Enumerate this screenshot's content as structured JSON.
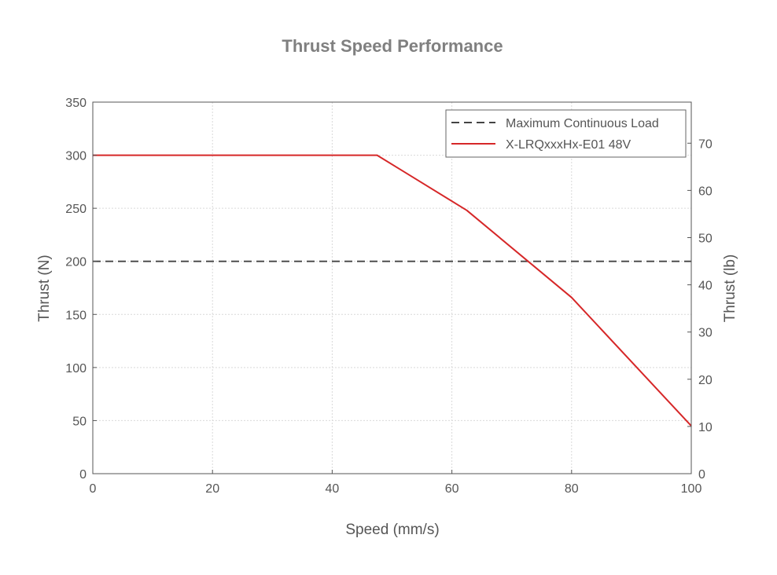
{
  "colors": {
    "background": "#ffffff",
    "axis": "#555555",
    "grid": "#d9d9d9",
    "title": "#808080",
    "thrust_line": "#d62728",
    "max_load_line": "#444444"
  },
  "chart_data": {
    "type": "line",
    "title": "Thrust Speed Performance",
    "xlabel": "Speed (mm/s)",
    "ylabel": "Thrust (N)",
    "y2label": "Thrust (lb)",
    "xlim": [
      0,
      100
    ],
    "ylim": [
      0,
      350
    ],
    "y2lim": [
      0,
      78.7
    ],
    "x_ticks": [
      "0",
      "20",
      "40",
      "60",
      "80",
      "100"
    ],
    "x_tick_values": [
      0,
      20,
      40,
      60,
      80,
      100
    ],
    "y_ticks": [
      "0",
      "50",
      "100",
      "150",
      "200",
      "250",
      "300",
      "350"
    ],
    "y_tick_values": [
      0,
      50,
      100,
      150,
      200,
      250,
      300,
      350
    ],
    "y2_ticks": [
      "0",
      "10",
      "20",
      "30",
      "40",
      "50",
      "60",
      "70"
    ],
    "y2_tick_values": [
      0,
      10,
      20,
      30,
      40,
      50,
      60,
      70
    ],
    "grid": true,
    "legend_position": "top-right",
    "series": [
      {
        "name": "Maximum Continuous Load",
        "style": "dashed",
        "color": "#444444",
        "x": [
          0,
          100
        ],
        "y": [
          200,
          200
        ]
      },
      {
        "name": "X-LRQxxxHx-E01 48V",
        "style": "solid",
        "color": "#d62728",
        "x": [
          0,
          47.5,
          62.5,
          80,
          100
        ],
        "y": [
          300,
          300,
          248,
          166,
          45
        ]
      }
    ]
  }
}
